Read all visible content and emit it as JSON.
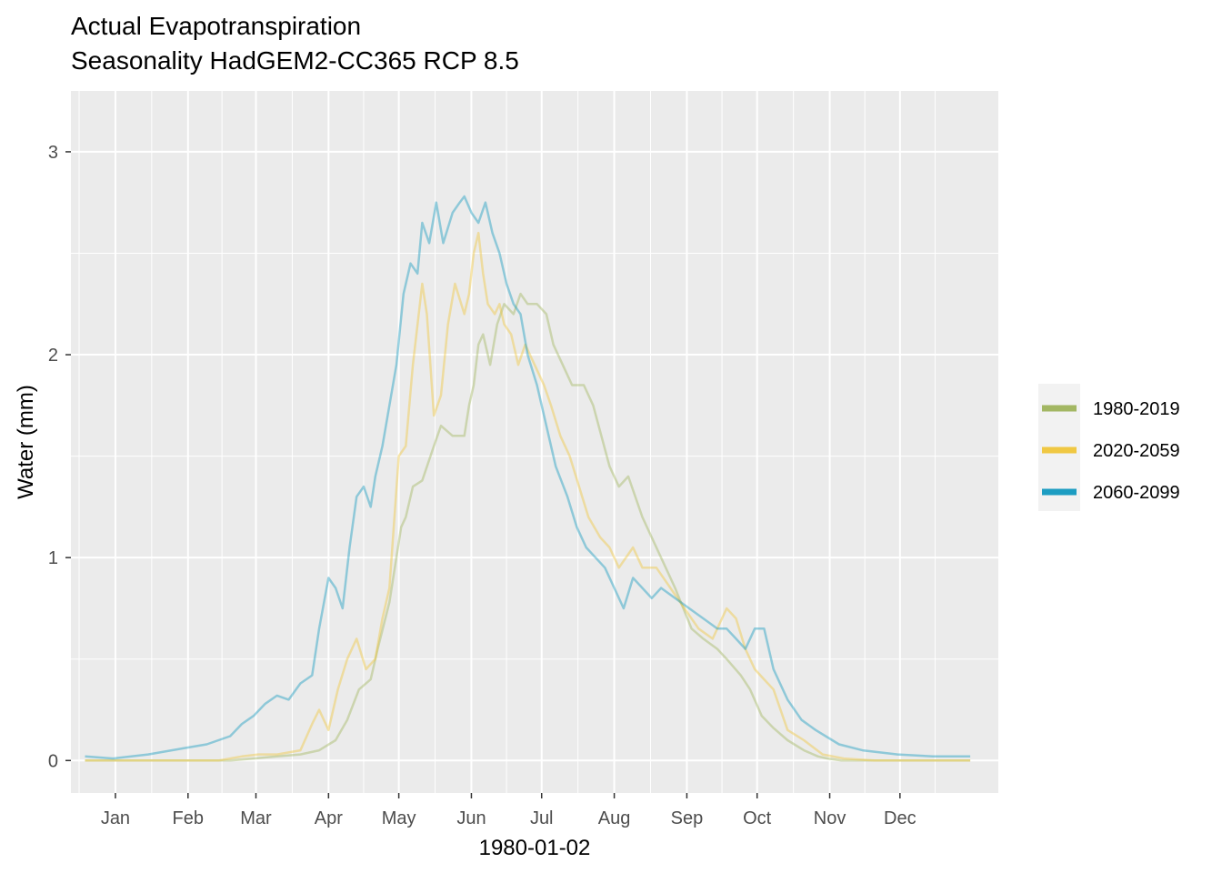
{
  "chart_data": {
    "type": "line",
    "title": "Actual Evapotranspiration",
    "subtitle": "Seasonality HadGEM2-CC365 RCP 8.5",
    "xlabel": "1980-01-02",
    "ylabel": "Water (mm)",
    "x_unit": "day-of-year",
    "xlim": [
      -18,
      378
    ],
    "ylim": [
      -0.16,
      3.3
    ],
    "x_ticks": [
      {
        "label": "Jan",
        "value": 1
      },
      {
        "label": "Feb",
        "value": 32
      },
      {
        "label": "Mar",
        "value": 61
      },
      {
        "label": "Apr",
        "value": 92
      },
      {
        "label": "May",
        "value": 122
      },
      {
        "label": "Jun",
        "value": 153
      },
      {
        "label": "Jul",
        "value": 183
      },
      {
        "label": "Aug",
        "value": 214
      },
      {
        "label": "Sep",
        "value": 245
      },
      {
        "label": "Oct",
        "value": 275
      },
      {
        "label": "Nov",
        "value": 306
      },
      {
        "label": "Dec",
        "value": 336
      }
    ],
    "y_ticks": [
      0,
      1,
      2,
      3
    ],
    "grid": true,
    "legend_position": "right",
    "series": [
      {
        "name": "1980-2019",
        "color": "#a3b763",
        "x": [
          -12,
          0,
          15,
          30,
          50,
          60,
          70,
          80,
          88,
          95,
          100,
          105,
          110,
          113,
          118,
          123,
          125,
          128,
          132,
          137,
          140,
          145,
          150,
          152,
          154,
          156,
          158,
          161,
          164,
          167,
          171,
          174,
          177,
          181,
          185,
          188,
          192,
          196,
          201,
          205,
          212,
          216,
          220,
          226,
          232,
          240,
          247,
          252,
          258,
          262,
          268,
          272,
          277,
          282,
          288,
          295,
          301,
          305,
          311,
          320,
          330,
          345,
          366
        ],
        "y": [
          0.0,
          0.0,
          0.0,
          0.0,
          0.0,
          0.01,
          0.02,
          0.03,
          0.05,
          0.1,
          0.2,
          0.35,
          0.4,
          0.55,
          0.78,
          1.15,
          1.2,
          1.35,
          1.38,
          1.55,
          1.65,
          1.6,
          1.6,
          1.75,
          1.85,
          2.05,
          2.1,
          1.95,
          2.15,
          2.25,
          2.2,
          2.3,
          2.25,
          2.25,
          2.2,
          2.05,
          1.95,
          1.85,
          1.85,
          1.75,
          1.45,
          1.35,
          1.4,
          1.2,
          1.05,
          0.85,
          0.65,
          0.6,
          0.55,
          0.5,
          0.42,
          0.35,
          0.22,
          0.16,
          0.1,
          0.05,
          0.02,
          0.01,
          0.0,
          0.0,
          0.0,
          0.0,
          0.0
        ]
      },
      {
        "name": "2020-2059",
        "color": "#f0c843",
        "x": [
          -12,
          0,
          20,
          45,
          55,
          62,
          70,
          80,
          85,
          88,
          92,
          96,
          100,
          104,
          108,
          112,
          115,
          118,
          122,
          125,
          128,
          132,
          134,
          137,
          140,
          143,
          146,
          150,
          152,
          154,
          156,
          158,
          160,
          163,
          165,
          167,
          170,
          173,
          176,
          180,
          184,
          187,
          191,
          195,
          199,
          203,
          208,
          212,
          216,
          222,
          226,
          232,
          238,
          244,
          250,
          256,
          262,
          266,
          270,
          274,
          278,
          282,
          288,
          295,
          303,
          312,
          325,
          345,
          366
        ],
        "y": [
          0.0,
          0.0,
          0.0,
          0.0,
          0.02,
          0.03,
          0.03,
          0.05,
          0.18,
          0.25,
          0.15,
          0.35,
          0.5,
          0.6,
          0.45,
          0.5,
          0.7,
          0.85,
          1.5,
          1.55,
          1.95,
          2.35,
          2.2,
          1.7,
          1.8,
          2.15,
          2.35,
          2.2,
          2.3,
          2.5,
          2.6,
          2.4,
          2.25,
          2.2,
          2.25,
          2.15,
          2.1,
          1.95,
          2.05,
          1.95,
          1.85,
          1.75,
          1.6,
          1.5,
          1.35,
          1.2,
          1.1,
          1.05,
          0.95,
          1.05,
          0.95,
          0.95,
          0.85,
          0.75,
          0.65,
          0.6,
          0.75,
          0.7,
          0.55,
          0.45,
          0.4,
          0.35,
          0.15,
          0.1,
          0.03,
          0.01,
          0.0,
          0.0,
          0.0
        ]
      },
      {
        "name": "2060-2099",
        "color": "#1d9dc2",
        "x": [
          -12,
          0,
          15,
          30,
          40,
          50,
          55,
          60,
          65,
          70,
          75,
          80,
          85,
          88,
          92,
          95,
          98,
          101,
          104,
          107,
          110,
          112,
          115,
          118,
          121,
          124,
          127,
          130,
          132,
          135,
          138,
          141,
          145,
          148,
          150,
          153,
          156,
          159,
          162,
          165,
          168,
          171,
          174,
          177,
          181,
          185,
          189,
          194,
          198,
          202,
          206,
          210,
          214,
          218,
          222,
          226,
          230,
          234,
          240,
          246,
          252,
          258,
          262,
          266,
          270,
          274,
          278,
          282,
          288,
          294,
          300,
          310,
          320,
          335,
          350,
          366
        ],
        "y": [
          0.02,
          0.01,
          0.03,
          0.06,
          0.08,
          0.12,
          0.18,
          0.22,
          0.28,
          0.32,
          0.3,
          0.38,
          0.42,
          0.65,
          0.9,
          0.85,
          0.75,
          1.05,
          1.3,
          1.35,
          1.25,
          1.4,
          1.55,
          1.75,
          1.95,
          2.3,
          2.45,
          2.4,
          2.65,
          2.55,
          2.75,
          2.55,
          2.7,
          2.75,
          2.78,
          2.7,
          2.65,
          2.75,
          2.6,
          2.5,
          2.35,
          2.25,
          2.2,
          2.0,
          1.85,
          1.65,
          1.45,
          1.3,
          1.15,
          1.05,
          1.0,
          0.95,
          0.85,
          0.75,
          0.9,
          0.85,
          0.8,
          0.85,
          0.8,
          0.75,
          0.7,
          0.65,
          0.65,
          0.6,
          0.55,
          0.65,
          0.65,
          0.45,
          0.3,
          0.2,
          0.15,
          0.08,
          0.05,
          0.03,
          0.02,
          0.02
        ]
      }
    ]
  }
}
